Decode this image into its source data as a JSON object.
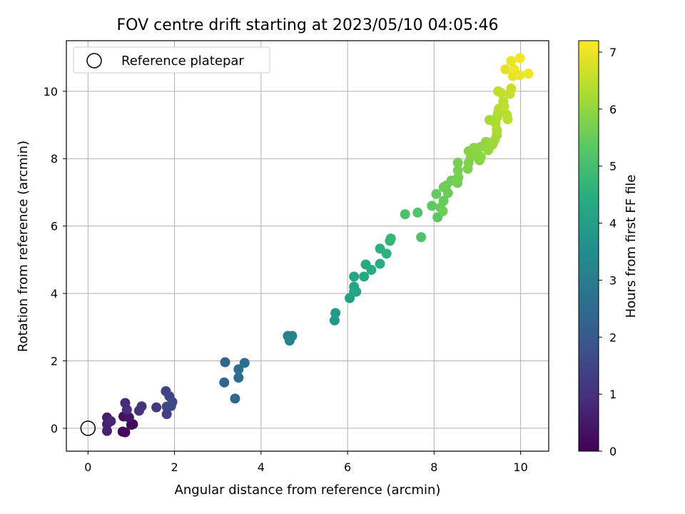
{
  "chart_data": {
    "type": "scatter",
    "title": "FOV centre drift starting at 2023/05/10 04:05:46",
    "xlabel": "Angular distance from reference (arcmin)",
    "ylabel": "Rotation from reference (arcmin)",
    "xlim": [
      -0.5,
      10.65
    ],
    "ylim": [
      -0.68,
      11.5
    ],
    "xticks": [
      0,
      2,
      4,
      6,
      8,
      10
    ],
    "yticks": [
      0,
      2,
      4,
      6,
      8,
      10
    ],
    "grid": true,
    "legend": {
      "position": "top-left",
      "entries": [
        "Reference platepar"
      ]
    },
    "reference_point": {
      "x": 0,
      "y": 0
    },
    "colorbar": {
      "label": "Hours from first FF file",
      "colormap": "viridis",
      "range": [
        0,
        7.2
      ],
      "ticks": [
        0,
        1,
        2,
        3,
        4,
        5,
        6,
        7
      ]
    },
    "series": [
      {
        "points": [
          {
            "x": 0.44,
            "y": 0.32,
            "t": 0.6
          },
          {
            "x": 0.44,
            "y": 0.12,
            "t": 0.65
          },
          {
            "x": 0.44,
            "y": -0.08,
            "t": 0.7
          },
          {
            "x": 0.53,
            "y": 0.21,
            "t": 0.75
          },
          {
            "x": 0.8,
            "y": -0.1,
            "t": 0.15
          },
          {
            "x": 0.86,
            "y": -0.12,
            "t": 0.2
          },
          {
            "x": 1.0,
            "y": 0.1,
            "t": 0.1
          },
          {
            "x": 1.04,
            "y": 0.12,
            "t": 0.05
          },
          {
            "x": 0.82,
            "y": 0.35,
            "t": 0.3
          },
          {
            "x": 0.95,
            "y": 0.32,
            "t": 0.4
          },
          {
            "x": 0.86,
            "y": 0.75,
            "t": 0.85
          },
          {
            "x": 0.9,
            "y": 0.55,
            "t": 0.9
          },
          {
            "x": 1.18,
            "y": 0.52,
            "t": 1.0
          },
          {
            "x": 1.24,
            "y": 0.65,
            "t": 1.05
          },
          {
            "x": 1.58,
            "y": 0.62,
            "t": 1.2
          },
          {
            "x": 1.8,
            "y": 1.1,
            "t": 1.4
          },
          {
            "x": 1.88,
            "y": 0.95,
            "t": 1.45
          },
          {
            "x": 1.82,
            "y": 0.64,
            "t": 1.5
          },
          {
            "x": 1.95,
            "y": 0.78,
            "t": 1.55
          },
          {
            "x": 1.92,
            "y": 0.66,
            "t": 1.6
          },
          {
            "x": 1.82,
            "y": 0.42,
            "t": 1.35
          },
          {
            "x": 3.17,
            "y": 1.96,
            "t": 2.4
          },
          {
            "x": 3.15,
            "y": 1.36,
            "t": 2.35
          },
          {
            "x": 3.4,
            "y": 0.88,
            "t": 2.45
          },
          {
            "x": 3.48,
            "y": 1.5,
            "t": 2.5
          },
          {
            "x": 3.48,
            "y": 1.75,
            "t": 2.55
          },
          {
            "x": 3.62,
            "y": 1.94,
            "t": 2.6
          },
          {
            "x": 4.62,
            "y": 2.74,
            "t": 3.1
          },
          {
            "x": 4.72,
            "y": 2.74,
            "t": 3.15
          },
          {
            "x": 4.66,
            "y": 2.6,
            "t": 3.2
          },
          {
            "x": 5.7,
            "y": 3.2,
            "t": 3.85
          },
          {
            "x": 5.72,
            "y": 3.42,
            "t": 3.9
          },
          {
            "x": 6.05,
            "y": 3.86,
            "t": 4.1
          },
          {
            "x": 6.15,
            "y": 4.05,
            "t": 4.15
          },
          {
            "x": 6.15,
            "y": 4.2,
            "t": 4.18
          },
          {
            "x": 6.2,
            "y": 4.05,
            "t": 4.22
          },
          {
            "x": 6.15,
            "y": 4.5,
            "t": 4.2
          },
          {
            "x": 6.38,
            "y": 4.5,
            "t": 4.3
          },
          {
            "x": 6.42,
            "y": 4.86,
            "t": 4.35
          },
          {
            "x": 6.55,
            "y": 4.7,
            "t": 4.4
          },
          {
            "x": 6.75,
            "y": 4.88,
            "t": 4.5
          },
          {
            "x": 6.75,
            "y": 5.33,
            "t": 4.55
          },
          {
            "x": 6.9,
            "y": 5.18,
            "t": 4.6
          },
          {
            "x": 6.98,
            "y": 5.56,
            "t": 4.7
          },
          {
            "x": 7.0,
            "y": 5.63,
            "t": 4.75
          },
          {
            "x": 7.33,
            "y": 6.35,
            "t": 5.1
          },
          {
            "x": 7.62,
            "y": 6.4,
            "t": 5.2
          },
          {
            "x": 7.7,
            "y": 5.67,
            "t": 5.15
          },
          {
            "x": 7.95,
            "y": 6.6,
            "t": 5.4
          },
          {
            "x": 8.05,
            "y": 6.95,
            "t": 5.45
          },
          {
            "x": 8.08,
            "y": 6.26,
            "t": 5.35
          },
          {
            "x": 8.15,
            "y": 6.55,
            "t": 5.5
          },
          {
            "x": 8.2,
            "y": 6.44,
            "t": 5.55
          },
          {
            "x": 8.22,
            "y": 6.75,
            "t": 5.5
          },
          {
            "x": 8.22,
            "y": 7.15,
            "t": 5.55
          },
          {
            "x": 8.28,
            "y": 7.2,
            "t": 5.6
          },
          {
            "x": 8.32,
            "y": 6.98,
            "t": 5.55
          },
          {
            "x": 8.4,
            "y": 7.35,
            "t": 5.6
          },
          {
            "x": 8.54,
            "y": 7.28,
            "t": 5.65
          },
          {
            "x": 8.56,
            "y": 7.45,
            "t": 5.68
          },
          {
            "x": 8.55,
            "y": 7.88,
            "t": 5.7
          },
          {
            "x": 8.55,
            "y": 7.65,
            "t": 5.72
          },
          {
            "x": 8.78,
            "y": 7.7,
            "t": 5.78
          },
          {
            "x": 8.8,
            "y": 7.88,
            "t": 5.8
          },
          {
            "x": 8.8,
            "y": 8.22,
            "t": 5.85
          },
          {
            "x": 8.85,
            "y": 8.05,
            "t": 5.85
          },
          {
            "x": 8.92,
            "y": 8.32,
            "t": 5.9
          },
          {
            "x": 8.98,
            "y": 8.15,
            "t": 5.92
          },
          {
            "x": 9.05,
            "y": 7.95,
            "t": 5.9
          },
          {
            "x": 9.08,
            "y": 8.35,
            "t": 5.95
          },
          {
            "x": 9.08,
            "y": 8.05,
            "t": 5.95
          },
          {
            "x": 9.2,
            "y": 8.5,
            "t": 6.0
          },
          {
            "x": 9.25,
            "y": 8.25,
            "t": 6.05
          },
          {
            "x": 9.35,
            "y": 8.42,
            "t": 6.1
          },
          {
            "x": 9.28,
            "y": 9.15,
            "t": 6.2
          },
          {
            "x": 9.4,
            "y": 8.55,
            "t": 6.15
          },
          {
            "x": 9.45,
            "y": 8.7,
            "t": 6.2
          },
          {
            "x": 9.45,
            "y": 8.85,
            "t": 6.25
          },
          {
            "x": 9.45,
            "y": 9.22,
            "t": 6.25
          },
          {
            "x": 9.42,
            "y": 9.05,
            "t": 6.3
          },
          {
            "x": 9.48,
            "y": 9.35,
            "t": 6.35
          },
          {
            "x": 9.5,
            "y": 9.48,
            "t": 6.4
          },
          {
            "x": 9.48,
            "y": 10.0,
            "t": 6.5
          },
          {
            "x": 9.55,
            "y": 9.95,
            "t": 6.55
          },
          {
            "x": 9.6,
            "y": 9.7,
            "t": 6.45
          },
          {
            "x": 9.62,
            "y": 9.55,
            "t": 6.5
          },
          {
            "x": 9.68,
            "y": 9.3,
            "t": 6.4
          },
          {
            "x": 9.7,
            "y": 9.17,
            "t": 6.45
          },
          {
            "x": 9.75,
            "y": 9.92,
            "t": 6.55
          },
          {
            "x": 9.78,
            "y": 10.08,
            "t": 6.6
          },
          {
            "x": 9.65,
            "y": 10.65,
            "t": 6.9
          },
          {
            "x": 9.78,
            "y": 10.9,
            "t": 7.0
          },
          {
            "x": 9.82,
            "y": 10.45,
            "t": 6.95
          },
          {
            "x": 9.85,
            "y": 10.65,
            "t": 7.05
          },
          {
            "x": 9.98,
            "y": 10.98,
            "t": 7.1
          },
          {
            "x": 9.98,
            "y": 10.48,
            "t": 7.0
          },
          {
            "x": 10.18,
            "y": 10.52,
            "t": 7.05
          }
        ]
      }
    ]
  }
}
